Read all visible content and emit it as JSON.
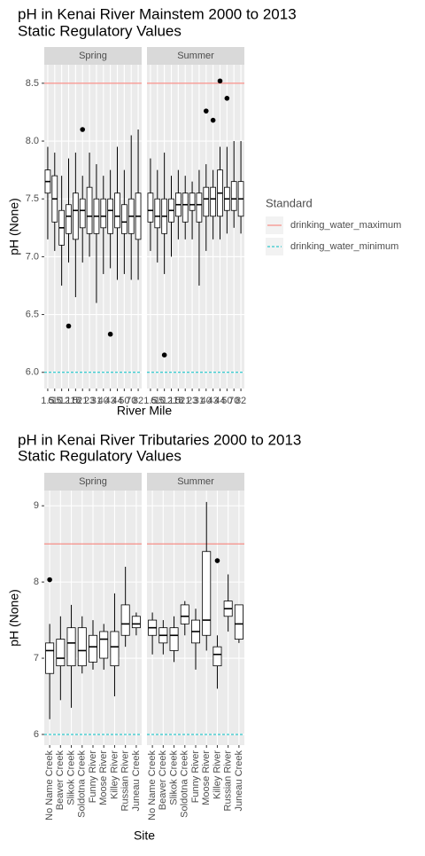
{
  "chart_data": [
    {
      "type": "boxplot",
      "title": [
        "pH in Kenai River Mainstem  2000 to 2013",
        "Static Regulatory Values"
      ],
      "ylabel": "pH (None)",
      "xlabel": "River Mile",
      "categories": [
        "1.5",
        "6.5",
        "10.1",
        "12.5",
        "18",
        "21",
        "23",
        "31",
        "40",
        "43",
        "44",
        "50",
        "70",
        "82"
      ],
      "x_tick_rotation": 0,
      "ylim": [
        5.86,
        8.66
      ],
      "yticks": [
        {
          "value": 6,
          "label": "6.0"
        },
        {
          "value": 6.5,
          "label": "6.5"
        },
        {
          "value": 7,
          "label": "7.0"
        },
        {
          "value": 7.5,
          "label": "7.5"
        },
        {
          "value": 8,
          "label": "8.0"
        },
        {
          "value": 8.5,
          "label": "8.5"
        }
      ],
      "grid": true,
      "hlines": [
        {
          "name": "drinking_water_maximum",
          "value": 8.5,
          "color": "#F8766D",
          "dash": "none"
        },
        {
          "name": "drinking_water_minimum",
          "value": 6,
          "color": "#00BFC4",
          "dash": "3,2"
        }
      ],
      "legend": {
        "title": "Standard",
        "position": "right"
      },
      "facets": [
        {
          "name": "Spring",
          "boxes": [
            {
              "min": 7.15,
              "q1": 7.55,
              "median": 7.65,
              "q3": 7.75,
              "max": 7.95
            },
            {
              "min": 7.05,
              "q1": 7.3,
              "median": 7.5,
              "q3": 7.7,
              "max": 7.9
            },
            {
              "min": 6.75,
              "q1": 7.1,
              "median": 7.25,
              "q3": 7.4,
              "max": 7.7
            },
            {
              "min": 6.95,
              "q1": 7.2,
              "median": 7.35,
              "q3": 7.45,
              "max": 7.85,
              "outliers": [
                6.4
              ]
            },
            {
              "min": 6.65,
              "q1": 7.15,
              "median": 7.4,
              "q3": 7.55,
              "max": 7.9
            },
            {
              "min": 6.95,
              "q1": 7.25,
              "median": 7.4,
              "q3": 7.5,
              "max": 7.7,
              "outliers": [
                8.1
              ]
            },
            {
              "min": 7.0,
              "q1": 7.2,
              "median": 7.35,
              "q3": 7.6,
              "max": 7.9
            },
            {
              "min": 6.6,
              "q1": 7.2,
              "median": 7.35,
              "q3": 7.5,
              "max": 7.8
            },
            {
              "min": 6.85,
              "q1": 7.25,
              "median": 7.35,
              "q3": 7.5,
              "max": 7.7
            },
            {
              "min": 6.9,
              "q1": 7.2,
              "median": 7.4,
              "q3": 7.5,
              "max": 7.75,
              "outliers": [
                6.33
              ]
            },
            {
              "min": 6.8,
              "q1": 7.25,
              "median": 7.35,
              "q3": 7.55,
              "max": 7.95
            },
            {
              "min": 6.85,
              "q1": 7.2,
              "median": 7.3,
              "q3": 7.45,
              "max": 7.75
            },
            {
              "min": 6.8,
              "q1": 7.2,
              "median": 7.35,
              "q3": 7.5,
              "max": 8.05
            },
            {
              "min": 6.8,
              "q1": 7.15,
              "median": 7.35,
              "q3": 7.55,
              "max": 8.1
            }
          ]
        },
        {
          "name": "Summer",
          "boxes": [
            {
              "min": 7.05,
              "q1": 7.3,
              "median": 7.4,
              "q3": 7.55,
              "max": 7.85
            },
            {
              "min": 6.95,
              "q1": 7.25,
              "median": 7.35,
              "q3": 7.5,
              "max": 7.75
            },
            {
              "min": 6.85,
              "q1": 7.2,
              "median": 7.35,
              "q3": 7.5,
              "max": 7.9,
              "outliers": [
                6.15
              ]
            },
            {
              "min": 7.0,
              "q1": 7.3,
              "median": 7.4,
              "q3": 7.5,
              "max": 7.7
            },
            {
              "min": 7.15,
              "q1": 7.35,
              "median": 7.45,
              "q3": 7.55,
              "max": 7.75
            },
            {
              "min": 7.15,
              "q1": 7.3,
              "median": 7.45,
              "q3": 7.55,
              "max": 7.7
            },
            {
              "min": 7.15,
              "q1": 7.4,
              "median": 7.45,
              "q3": 7.55,
              "max": 7.65
            },
            {
              "min": 6.75,
              "q1": 7.3,
              "median": 7.45,
              "q3": 7.55,
              "max": 7.75
            },
            {
              "min": 7.05,
              "q1": 7.35,
              "median": 7.5,
              "q3": 7.6,
              "max": 7.8,
              "outliers": [
                8.26
              ]
            },
            {
              "min": 7.15,
              "q1": 7.35,
              "median": 7.5,
              "q3": 7.6,
              "max": 7.75,
              "outliers": [
                8.18
              ]
            },
            {
              "min": 7.15,
              "q1": 7.35,
              "median": 7.55,
              "q3": 7.75,
              "max": 7.95,
              "outliers": [
                8.52
              ]
            },
            {
              "min": 7.2,
              "q1": 7.4,
              "median": 7.5,
              "q3": 7.6,
              "max": 7.95,
              "outliers": [
                8.37
              ]
            },
            {
              "min": 7.25,
              "q1": 7.4,
              "median": 7.5,
              "q3": 7.65,
              "max": 8.0
            },
            {
              "min": 7.2,
              "q1": 7.35,
              "median": 7.5,
              "q3": 7.65,
              "max": 8.0
            }
          ]
        }
      ]
    },
    {
      "type": "boxplot",
      "title": [
        "pH in Kenai River Tributaries  2000 to 2013",
        "Static Regulatory Values"
      ],
      "ylabel": "pH (None)",
      "xlabel": "Site",
      "categories": [
        "No Name Creek",
        "Beaver Creek",
        "Slikok Creek",
        "Soldotna Creek",
        "Funny River",
        "Moose River",
        "Killey River",
        "Russian River",
        "Juneau Creek"
      ],
      "x_tick_rotation": -90,
      "ylim": [
        5.86,
        9.2
      ],
      "yticks": [
        6,
        7,
        8,
        9
      ],
      "grid": true,
      "hlines": [
        {
          "value": 8.5,
          "color": "#F8766D",
          "dash": "none"
        },
        {
          "value": 6,
          "color": "#00BFC4",
          "dash": "3,2"
        }
      ],
      "facets": [
        {
          "name": "Spring",
          "boxes": [
            {
              "min": 6.2,
              "q1": 6.8,
              "median": 7.1,
              "q3": 7.2,
              "max": 7.45,
              "outliers": [
                8.03
              ]
            },
            {
              "min": 6.45,
              "q1": 6.9,
              "median": 7.0,
              "q3": 7.25,
              "max": 7.55
            },
            {
              "min": 6.35,
              "q1": 6.9,
              "median": 7.2,
              "q3": 7.4,
              "max": 7.7
            },
            {
              "min": 6.8,
              "q1": 6.9,
              "median": 7.1,
              "q3": 7.4,
              "max": 7.55
            },
            {
              "min": 6.85,
              "q1": 6.95,
              "median": 7.15,
              "q3": 7.3,
              "max": 7.5
            },
            {
              "min": 6.85,
              "q1": 7.0,
              "median": 7.25,
              "q3": 7.35,
              "max": 7.45
            },
            {
              "min": 6.5,
              "q1": 6.9,
              "median": 7.15,
              "q3": 7.35,
              "max": 7.85
            },
            {
              "min": 7.15,
              "q1": 7.3,
              "median": 7.45,
              "q3": 7.7,
              "max": 8.2
            },
            {
              "min": 7.3,
              "q1": 7.4,
              "median": 7.45,
              "q3": 7.55,
              "max": 7.6
            }
          ]
        },
        {
          "name": "Summer",
          "boxes": [
            {
              "min": 7.05,
              "q1": 7.3,
              "median": 7.4,
              "q3": 7.5,
              "max": 7.6
            },
            {
              "min": 7.05,
              "q1": 7.2,
              "median": 7.3,
              "q3": 7.4,
              "max": 7.5
            },
            {
              "min": 6.95,
              "q1": 7.1,
              "median": 7.3,
              "q3": 7.4,
              "max": 7.55
            },
            {
              "min": 7.3,
              "q1": 7.45,
              "median": 7.55,
              "q3": 7.7,
              "max": 7.75
            },
            {
              "min": 6.85,
              "q1": 7.2,
              "median": 7.35,
              "q3": 7.5,
              "max": 7.65
            },
            {
              "min": 7.1,
              "q1": 7.3,
              "median": 7.5,
              "q3": 8.4,
              "max": 9.05
            },
            {
              "min": 6.6,
              "q1": 6.9,
              "median": 7.05,
              "q3": 7.15,
              "max": 7.3,
              "outliers": [
                8.28
              ]
            },
            {
              "min": 7.35,
              "q1": 7.55,
              "median": 7.65,
              "q3": 7.75,
              "max": 8.1
            },
            {
              "min": 7.2,
              "q1": 7.25,
              "median": 7.45,
              "q3": 7.7,
              "max": 7.7
            }
          ]
        }
      ]
    }
  ]
}
